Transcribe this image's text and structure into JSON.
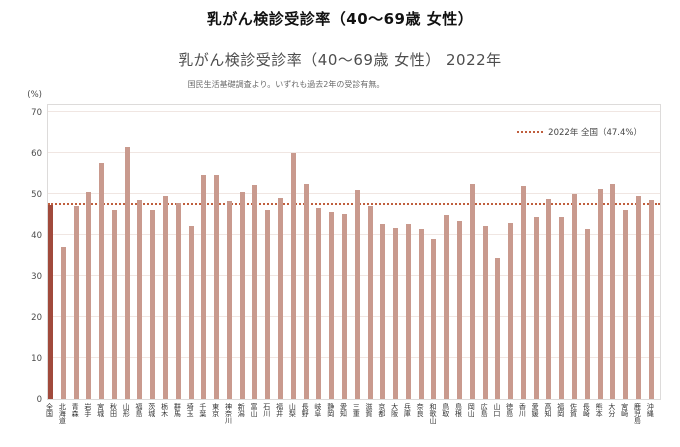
{
  "header": {
    "title": "乳がん検診受診率（40～69歳 女性）",
    "chart_title": "乳がん検診受診率（40～69歳 女性） 2022年",
    "source_note": "国民生活基礎調査より。いずれも過去2年の受診有無。"
  },
  "chart_data": {
    "type": "bar",
    "title": "乳がん検診受診率（40～69歳 女性） 2022年",
    "subtitle": "国民生活基礎調査より。いずれも過去2年の受診有無。",
    "unit_label": "(%)",
    "ylim": [
      0,
      70
    ],
    "y_ticks": [
      0,
      10,
      20,
      30,
      40,
      50,
      60,
      70
    ],
    "grid": true,
    "legend": {
      "label": "2022年 全国（47.4%）",
      "position": "top-right",
      "style": "dotted-line"
    },
    "reference_line": {
      "value": 47.4,
      "label": "2022年 全国（47.4%）",
      "color": "#c05f3e"
    },
    "colors": {
      "national_bar": "#a14a3c",
      "prefecture_bar": "#c99a8e",
      "gridline": "#f0e6e2",
      "reference_line": "#c05f3e"
    },
    "categories": [
      "全国",
      "北海道",
      "青森",
      "岩手",
      "宮城",
      "秋田",
      "山形",
      "福島",
      "茨城",
      "栃木",
      "群馬",
      "埼玉",
      "千葉",
      "東京",
      "神奈川",
      "新潟",
      "富山",
      "石川",
      "福井",
      "山梨",
      "長野",
      "岐阜",
      "静岡",
      "愛知",
      "三重",
      "滋賀",
      "京都",
      "大阪",
      "兵庫",
      "奈良",
      "和歌山",
      "鳥取",
      "島根",
      "岡山",
      "広島",
      "山口",
      "徳島",
      "香川",
      "愛媛",
      "高知",
      "福岡",
      "佐賀",
      "長崎",
      "熊本",
      "大分",
      "宮崎",
      "鹿児島",
      "沖縄"
    ],
    "values": [
      47.4,
      37.0,
      47.0,
      50.4,
      57.6,
      46.0,
      61.5,
      48.5,
      46.0,
      49.5,
      47.8,
      42.3,
      54.7,
      54.6,
      48.3,
      50.6,
      52.2,
      46.1,
      49.1,
      60.0,
      52.5,
      46.7,
      45.6,
      45.1,
      51.0,
      47.1,
      42.7,
      41.7,
      42.7,
      41.4,
      39.1,
      44.9,
      43.3,
      52.5,
      42.2,
      34.5,
      43.0,
      52.0,
      44.4,
      48.9,
      44.3,
      50.0,
      41.5,
      51.3,
      52.5,
      46.1,
      49.4,
      48.5
    ]
  }
}
